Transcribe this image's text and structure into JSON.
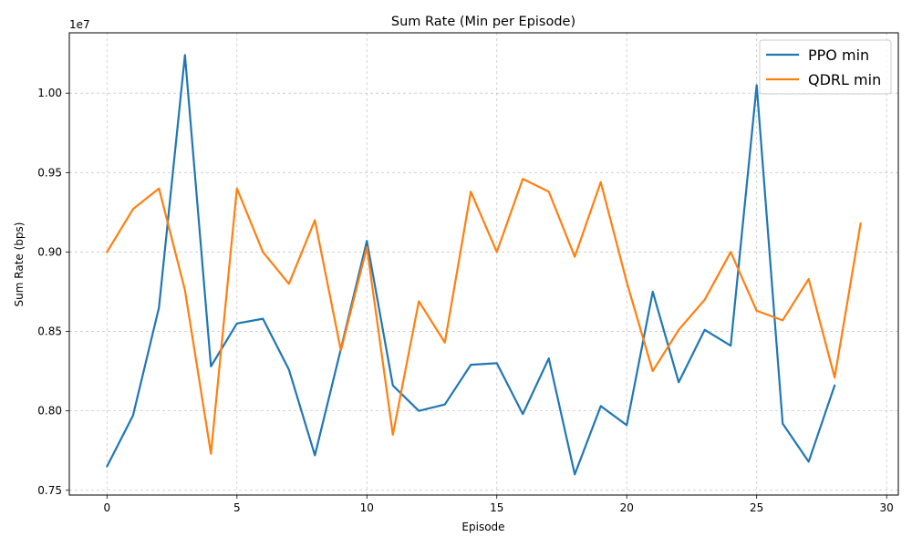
{
  "chart_data": {
    "type": "line",
    "title": "Sum Rate (Min per Episode)",
    "xlabel": "Episode",
    "ylabel": "Sum Rate (bps)",
    "y_offset_label": "1e7",
    "xlim": [
      -1.45,
      30.45
    ],
    "ylim": [
      7.47,
      10.38
    ],
    "x_ticks": [
      0,
      5,
      10,
      15,
      20,
      25,
      30
    ],
    "x_tick_labels": [
      "0",
      "5",
      "10",
      "15",
      "20",
      "25",
      "30"
    ],
    "y_ticks": [
      7.5,
      8.0,
      8.5,
      9.0,
      9.5,
      10.0
    ],
    "y_tick_labels": [
      "0.75",
      "0.80",
      "0.85",
      "0.90",
      "0.95",
      "1.00"
    ],
    "grid": true,
    "legend_position": "top-right",
    "series": [
      {
        "name": "PPO min",
        "color": "#1f77b4",
        "x": [
          0,
          1,
          2,
          3,
          4,
          5,
          6,
          7,
          8,
          9,
          10,
          11,
          12,
          13,
          14,
          15,
          16,
          17,
          18,
          19,
          20,
          21,
          22,
          23,
          24,
          25,
          26,
          27,
          28
        ],
        "values": [
          7.65,
          7.97,
          8.65,
          10.24,
          8.28,
          8.55,
          8.58,
          8.26,
          7.72,
          8.39,
          9.07,
          8.16,
          8.0,
          8.04,
          8.29,
          8.3,
          7.98,
          8.33,
          7.6,
          8.03,
          7.91,
          8.75,
          8.18,
          8.51,
          8.41,
          10.05,
          7.92,
          7.68,
          8.16
        ]
      },
      {
        "name": "QDRL min",
        "color": "#ff7f0e",
        "x": [
          0,
          1,
          2,
          3,
          4,
          5,
          6,
          7,
          8,
          9,
          10,
          11,
          12,
          13,
          14,
          15,
          16,
          17,
          18,
          19,
          20,
          21,
          22,
          23,
          24,
          25,
          26,
          27,
          28,
          29
        ],
        "values": [
          9.0,
          9.27,
          9.4,
          8.76,
          7.73,
          9.4,
          9.0,
          8.8,
          9.2,
          8.38,
          9.03,
          7.85,
          8.69,
          8.43,
          9.38,
          9.0,
          9.46,
          9.38,
          8.97,
          9.44,
          8.81,
          8.25,
          8.51,
          8.7,
          9.0,
          8.63,
          8.57,
          8.83,
          8.21,
          9.18
        ]
      }
    ]
  }
}
